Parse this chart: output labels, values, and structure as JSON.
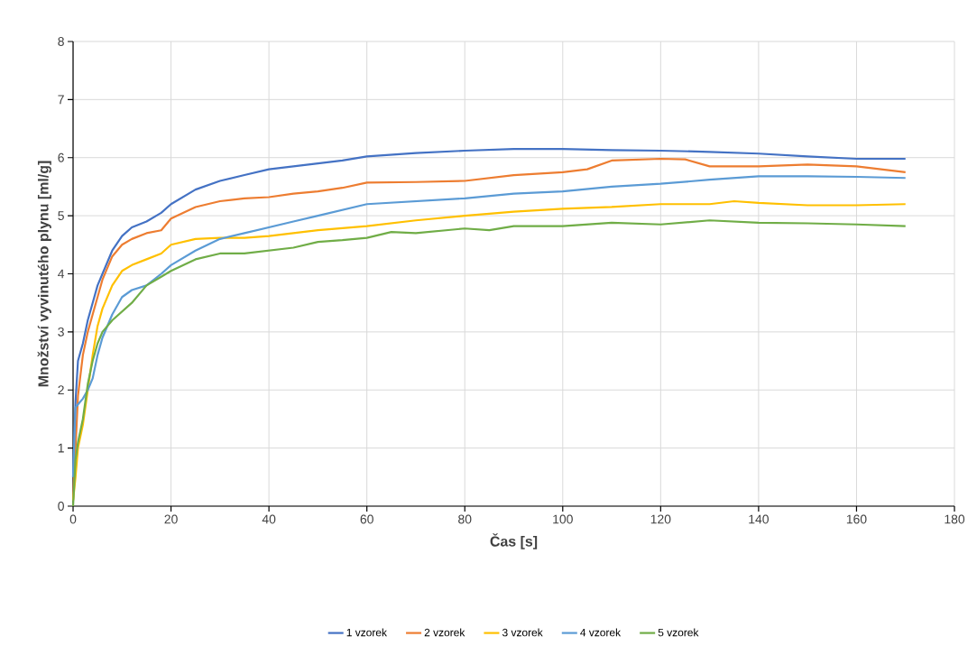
{
  "chart_data": {
    "type": "line",
    "xlabel": "Čas [s]",
    "ylabel": "Množství vyvinutého plynu [ml/g]",
    "xlim": [
      0,
      180
    ],
    "xticks": [
      0,
      20,
      40,
      60,
      80,
      100,
      120,
      140,
      160,
      180
    ],
    "ylim": [
      0,
      8
    ],
    "yticks": [
      0,
      1,
      2,
      3,
      4,
      5,
      6,
      7,
      8
    ],
    "grid": true,
    "legend": "bottom",
    "series": [
      {
        "name": "1 vzorek",
        "color": "#4472c4",
        "x": [
          0,
          0.5,
          1,
          2,
          3,
          4,
          5,
          6,
          8,
          10,
          12,
          15,
          18,
          20,
          25,
          30,
          35,
          40,
          45,
          50,
          55,
          60,
          70,
          80,
          90,
          100,
          110,
          120,
          130,
          140,
          150,
          160,
          170
        ],
        "values": [
          0.5,
          1.8,
          2.5,
          2.8,
          3.2,
          3.5,
          3.8,
          4.0,
          4.4,
          4.65,
          4.8,
          4.9,
          5.05,
          5.2,
          5.45,
          5.6,
          5.7,
          5.8,
          5.85,
          5.9,
          5.95,
          6.02,
          6.08,
          6.12,
          6.15,
          6.15,
          6.13,
          6.12,
          6.1,
          6.07,
          6.02,
          5.98,
          5.98
        ]
      },
      {
        "name": "2 vzorek",
        "color": "#ed7d31",
        "x": [
          0,
          0.5,
          1,
          2,
          3,
          4,
          5,
          6,
          8,
          10,
          12,
          15,
          18,
          20,
          25,
          30,
          35,
          40,
          45,
          50,
          55,
          60,
          70,
          80,
          90,
          100,
          105,
          110,
          120,
          125,
          130,
          140,
          150,
          160,
          170
        ],
        "values": [
          0.1,
          1.0,
          1.9,
          2.6,
          3.0,
          3.3,
          3.6,
          3.9,
          4.3,
          4.5,
          4.6,
          4.7,
          4.75,
          4.95,
          5.15,
          5.25,
          5.3,
          5.32,
          5.38,
          5.42,
          5.48,
          5.57,
          5.58,
          5.6,
          5.7,
          5.75,
          5.8,
          5.95,
          5.98,
          5.97,
          5.85,
          5.85,
          5.88,
          5.85,
          5.75
        ]
      },
      {
        "name": "3 vzorek",
        "color": "#ffc000",
        "x": [
          0,
          0.5,
          1,
          2,
          3,
          4,
          5,
          6,
          8,
          10,
          12,
          15,
          18,
          20,
          25,
          30,
          35,
          40,
          45,
          50,
          60,
          70,
          80,
          90,
          100,
          110,
          120,
          130,
          135,
          140,
          150,
          160,
          170
        ],
        "values": [
          0.1,
          0.5,
          1.0,
          1.4,
          2.0,
          2.6,
          3.1,
          3.4,
          3.8,
          4.05,
          4.15,
          4.25,
          4.35,
          4.5,
          4.6,
          4.62,
          4.62,
          4.65,
          4.7,
          4.75,
          4.82,
          4.92,
          5.0,
          5.07,
          5.12,
          5.15,
          5.2,
          5.2,
          5.25,
          5.22,
          5.18,
          5.18,
          5.2
        ]
      },
      {
        "name": "4 vzorek",
        "color": "#5b9bd5",
        "x": [
          0,
          0.5,
          1,
          2,
          3,
          4,
          5,
          6,
          8,
          10,
          12,
          15,
          18,
          20,
          25,
          30,
          35,
          40,
          45,
          50,
          55,
          60,
          70,
          80,
          90,
          100,
          110,
          120,
          130,
          140,
          150,
          160,
          170
        ],
        "values": [
          0.5,
          1.7,
          1.75,
          1.85,
          2.0,
          2.2,
          2.6,
          2.9,
          3.3,
          3.6,
          3.72,
          3.8,
          4.0,
          4.15,
          4.4,
          4.6,
          4.7,
          4.8,
          4.9,
          5.0,
          5.1,
          5.2,
          5.25,
          5.3,
          5.38,
          5.42,
          5.5,
          5.55,
          5.62,
          5.68,
          5.68,
          5.67,
          5.65
        ]
      },
      {
        "name": "5 vzorek",
        "color": "#70ad47",
        "x": [
          0,
          0.5,
          1,
          2,
          3,
          4,
          5,
          6,
          8,
          10,
          12,
          15,
          18,
          20,
          25,
          30,
          35,
          40,
          45,
          50,
          55,
          60,
          65,
          70,
          80,
          85,
          90,
          100,
          110,
          120,
          130,
          140,
          150,
          160,
          170
        ],
        "values": [
          0.0,
          0.8,
          1.1,
          1.5,
          2.1,
          2.5,
          2.8,
          3.0,
          3.2,
          3.35,
          3.5,
          3.8,
          3.95,
          4.05,
          4.25,
          4.35,
          4.35,
          4.4,
          4.45,
          4.55,
          4.58,
          4.62,
          4.72,
          4.7,
          4.78,
          4.75,
          4.82,
          4.82,
          4.88,
          4.85,
          4.92,
          4.88,
          4.87,
          4.85,
          4.82
        ]
      }
    ]
  }
}
